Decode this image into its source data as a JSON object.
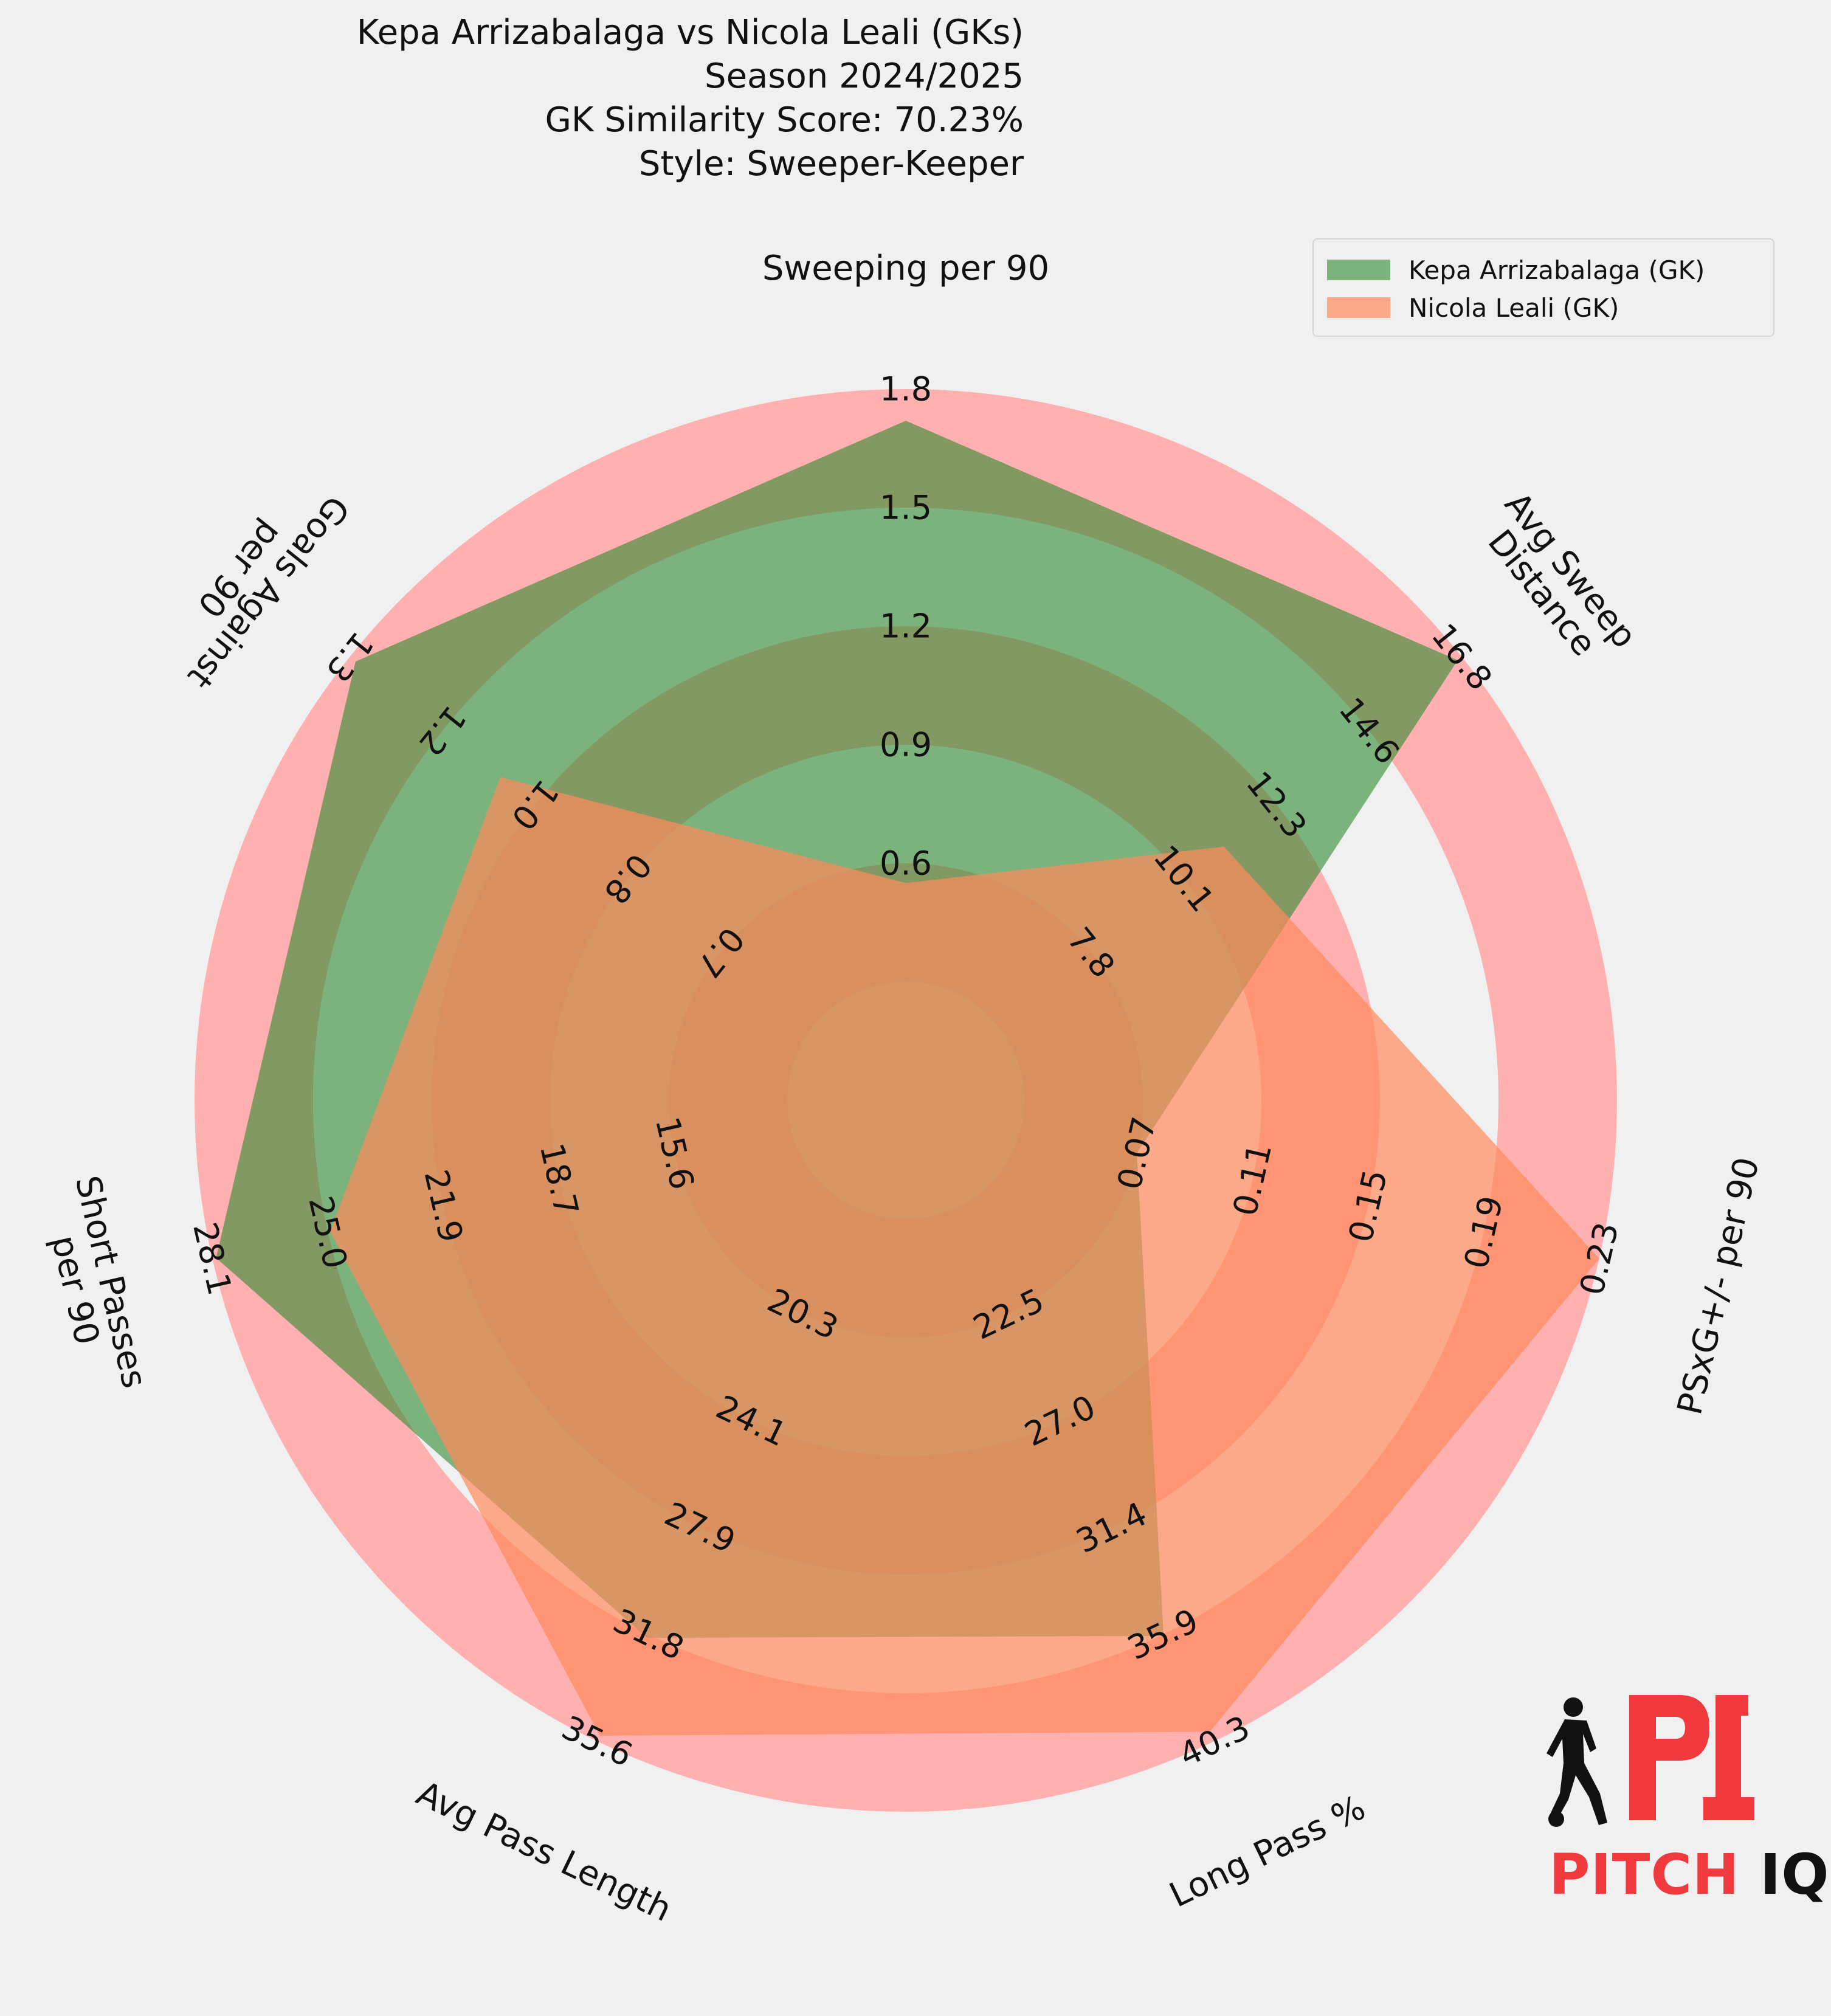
{
  "title": {
    "line1": "Kepa Arrizabalaga vs Nicola Leali (GKs)",
    "line2": "Season 2024/2025",
    "line3": "GK Similarity Score: 70.23%",
    "line4": "Style: Sweeper-Keeper"
  },
  "colors": {
    "ring_dark": "#ffb0b0",
    "ring_light": "#f0f0f0",
    "player1": "#2e8b30",
    "player2": "#ff8a5c"
  },
  "chart_data": {
    "type": "radar",
    "categories": [
      "Sweeping per 90",
      "Avg Sweep\nDistance",
      "PSxG+/- per 90",
      "Long Pass %",
      "Avg Pass Length",
      "Short Passes\nper 90",
      "Goals Against\nper 90"
    ],
    "axes": [
      {
        "min": 0.3,
        "max": 1.8,
        "ticks": [
          "0.6",
          "0.9",
          "1.2",
          "1.5",
          "1.8"
        ]
      },
      {
        "min": 5.5,
        "max": 16.8,
        "ticks": [
          "7.8",
          "10.1",
          "12.3",
          "14.6",
          "16.8"
        ]
      },
      {
        "min": 0.03,
        "max": 0.23,
        "ticks": [
          "0.07",
          "0.11",
          "0.15",
          "0.19",
          "0.23"
        ]
      },
      {
        "min": 18.0,
        "max": 40.3,
        "ticks": [
          "22.5",
          "27.0",
          "31.4",
          "35.9",
          "40.3"
        ]
      },
      {
        "min": 16.5,
        "max": 35.6,
        "ticks": [
          "20.3",
          "24.1",
          "27.9",
          "31.8",
          "35.6"
        ]
      },
      {
        "min": 12.4,
        "max": 28.1,
        "ticks": [
          "15.6",
          "18.7",
          "21.9",
          "25.0",
          "28.1"
        ]
      },
      {
        "min": 0.5,
        "max": 1.3,
        "ticks": [
          "0.7",
          "0.8",
          "1.0",
          "1.2",
          "1.3"
        ]
      }
    ],
    "series": [
      {
        "name": "Kepa Arrizabalaga (GK)",
        "values": [
          1.72,
          16.7,
          0.07,
          35.9,
          31.9,
          28.0,
          1.29
        ]
      },
      {
        "name": "Nicola Leali (GK)",
        "values": [
          0.55,
          11.0,
          0.23,
          39.9,
          35.4,
          24.9,
          1.04
        ]
      }
    ]
  },
  "brand": {
    "text_pitch": "PITCH",
    "text_iq": "IQ"
  }
}
